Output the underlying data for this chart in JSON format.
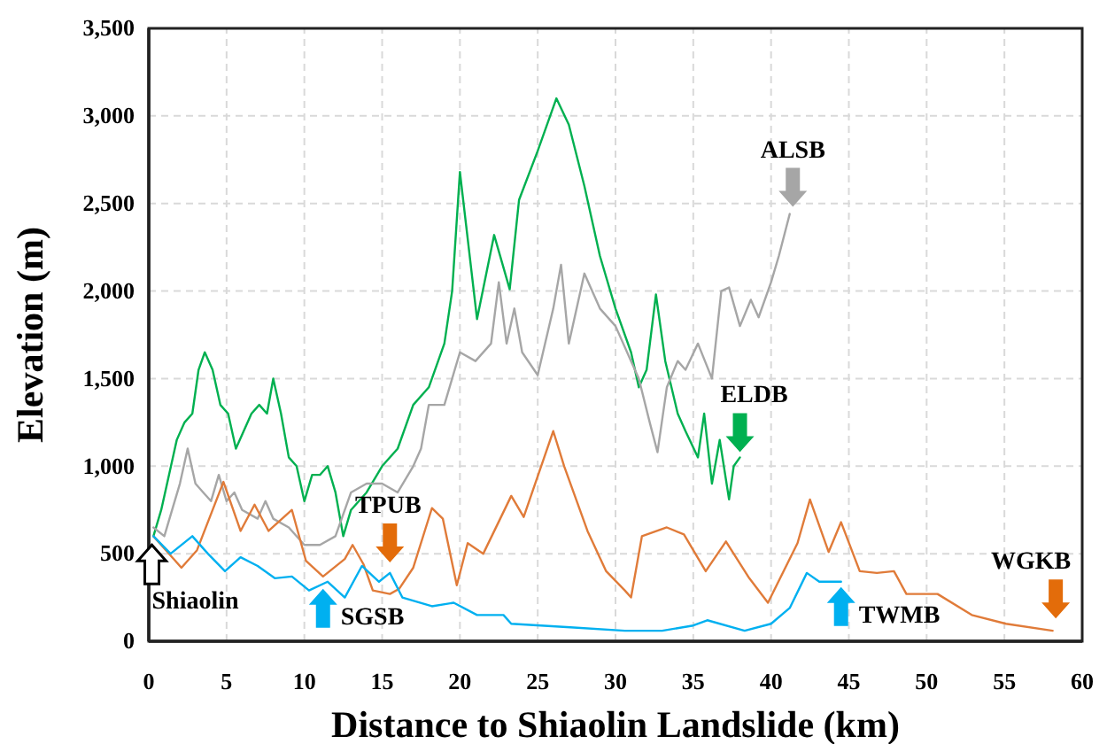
{
  "chart_data": {
    "type": "line",
    "xlabel": "Distance to Shiaolin Landslide (km)",
    "ylabel": "Elevation (m)",
    "xlim": [
      0,
      60
    ],
    "xticks": [
      0,
      5,
      10,
      15,
      20,
      25,
      30,
      35,
      40,
      45,
      50,
      55,
      60
    ],
    "ylim": [
      0,
      3500
    ],
    "yticks": [
      0,
      500,
      {
        "value": 1000,
        "label": "1,000"
      },
      {
        "value": 1500,
        "label": "1,500"
      },
      {
        "value": 2000,
        "label": "2,000"
      },
      {
        "value": 2500,
        "label": "2,500"
      },
      {
        "value": 3000,
        "label": "3,000"
      },
      {
        "value": 3500,
        "label": "3,500"
      }
    ],
    "grid": true,
    "line_style": "solid",
    "marker": "none",
    "series": [
      {
        "color": "#00b050",
        "x": [
          0.3,
          0.8,
          1.3,
          1.8,
          2.3,
          2.8,
          3.2,
          3.6,
          4.1,
          4.6,
          5.1,
          5.6,
          6.1,
          6.6,
          7.1,
          7.6,
          8.0,
          8.5,
          9.0,
          9.5,
          10.0,
          10.5,
          11.0,
          11.5,
          12.0,
          12.5,
          13.0,
          14.0,
          15.0,
          16.0,
          17.0,
          18.0,
          19.0,
          19.5,
          20.0,
          21.1,
          22.2,
          23.2,
          23.8,
          25.0,
          26.2,
          27.0,
          28.0,
          29.0,
          30.0,
          31.0,
          31.5,
          32.0,
          32.6,
          33.2,
          34.0,
          34.5,
          35.3,
          35.7,
          36.2,
          36.7,
          37.3,
          37.6,
          38.0
        ],
        "values": [
          600,
          750,
          950,
          1150,
          1250,
          1300,
          1550,
          1650,
          1550,
          1350,
          1300,
          1100,
          1200,
          1300,
          1350,
          1300,
          1500,
          1300,
          1050,
          1000,
          800,
          950,
          950,
          1000,
          850,
          600,
          750,
          850,
          1000,
          1100,
          1350,
          1450,
          1700,
          2000,
          2680,
          1840,
          2320,
          2010,
          2520,
          2800,
          3100,
          2950,
          2600,
          2200,
          1900,
          1650,
          1450,
          1550,
          1980,
          1600,
          1300,
          1200,
          1050,
          1300,
          900,
          1150,
          810,
          1000,
          1050
        ]
      },
      {
        "color": "#a6a6a6",
        "x": [
          0.3,
          1.0,
          1.5,
          2.0,
          2.5,
          3.0,
          3.5,
          4.0,
          4.5,
          5.0,
          5.5,
          6.0,
          7.0,
          7.5,
          8.0,
          9.0,
          10.0,
          11.0,
          12.0,
          13.0,
          14.0,
          15.0,
          16.0,
          17.0,
          17.5,
          18.0,
          19.0,
          20.0,
          21.0,
          22.0,
          22.5,
          23.0,
          23.5,
          24.0,
          25.0,
          26.0,
          26.5,
          27.0,
          28.0,
          29.0,
          30.0,
          31.0,
          31.5,
          32.2,
          32.7,
          33.3,
          34.0,
          34.5,
          35.3,
          36.2,
          36.8,
          37.3,
          38.0,
          38.7,
          39.2,
          40.0,
          40.5,
          41.2
        ],
        "values": [
          650,
          600,
          750,
          900,
          1100,
          900,
          850,
          800,
          950,
          800,
          850,
          750,
          700,
          800,
          700,
          650,
          550,
          550,
          600,
          850,
          900,
          900,
          850,
          1000,
          1100,
          1350,
          1350,
          1650,
          1600,
          1700,
          2050,
          1700,
          1900,
          1650,
          1520,
          1900,
          2150,
          1700,
          2100,
          1900,
          1800,
          1600,
          1500,
          1250,
          1080,
          1450,
          1600,
          1550,
          1700,
          1500,
          2000,
          2020,
          1800,
          1950,
          1850,
          2050,
          2200,
          2440
        ]
      },
      {
        "color": "#e07b39",
        "x": [
          0.3,
          2.1,
          3.1,
          4.8,
          5.9,
          6.8,
          7.7,
          9.2,
          10.1,
          11.2,
          12.6,
          13.1,
          13.8,
          14.4,
          15.5,
          16.1,
          17.0,
          18.2,
          18.9,
          19.8,
          20.5,
          21.5,
          23.3,
          24.1,
          26.0,
          26.7,
          28.2,
          29.4,
          30.6,
          31.0,
          31.7,
          33.3,
          34.4,
          35.8,
          37.1,
          38.6,
          39.8,
          41.7,
          42.5,
          43.7,
          44.5,
          45.7,
          46.8,
          47.9,
          48.7,
          50.7,
          52.9,
          55.1,
          58.1
        ],
        "values": [
          600,
          420,
          520,
          910,
          630,
          780,
          630,
          750,
          460,
          370,
          470,
          550,
          440,
          290,
          270,
          300,
          420,
          760,
          700,
          320,
          560,
          500,
          830,
          710,
          1200,
          1000,
          630,
          400,
          290,
          250,
          600,
          650,
          610,
          400,
          570,
          360,
          220,
          560,
          810,
          510,
          680,
          400,
          390,
          400,
          270,
          270,
          150,
          100,
          60
        ]
      },
      {
        "color": "#00b0f0",
        "x": [
          0.3,
          1.4,
          2.8,
          3.8,
          4.9,
          5.9,
          7.0,
          8.1,
          9.2,
          10.3,
          11.5,
          12.6,
          13.7,
          14.8,
          15.5,
          16.3,
          18.2,
          19.6,
          21.1,
          22.8,
          23.3,
          27.1,
          30.6,
          33.0,
          35.0,
          35.9,
          38.3,
          40.0,
          41.2,
          42.3,
          43.1,
          44.5
        ],
        "values": [
          600,
          500,
          600,
          500,
          400,
          480,
          430,
          360,
          370,
          290,
          340,
          250,
          430,
          340,
          390,
          250,
          200,
          220,
          150,
          150,
          100,
          80,
          60,
          60,
          90,
          120,
          60,
          100,
          190,
          390,
          340,
          340
        ]
      }
    ],
    "annotations": [
      {
        "text": "ALSB",
        "x": 41.4,
        "y": 2450
      },
      {
        "text": "ELDB",
        "x": 38.0,
        "y": 1050
      },
      {
        "text": "TPUB",
        "x": 15.5,
        "y": 420
      },
      {
        "text": "WGKB",
        "x": 58.3,
        "y": 100
      },
      {
        "text": "SGSB",
        "x": 11.2,
        "y": 330
      },
      {
        "text": "TWMB",
        "x": 44.5,
        "y": 340
      },
      {
        "text": "Shiaolin",
        "x": 0.2,
        "y": 580
      }
    ]
  }
}
